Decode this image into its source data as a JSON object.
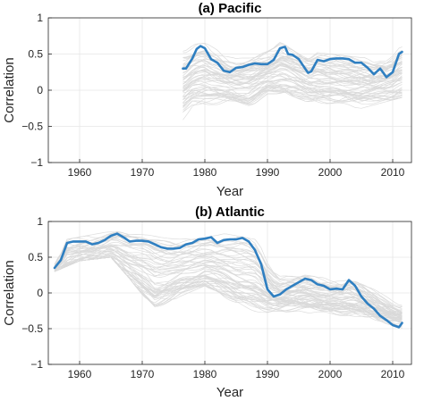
{
  "chart_data": [
    {
      "type": "line",
      "title": "(a) Pacific",
      "xlabel": "Year",
      "ylabel": "Correlation",
      "xlim": [
        1955,
        2013
      ],
      "ylim": [
        -1,
        1
      ],
      "xticks": [
        1960,
        1970,
        1980,
        1990,
        2000,
        2010
      ],
      "yticks": [
        -1,
        -0.5,
        0,
        0.5,
        1
      ],
      "grid": true,
      "legend": "none",
      "colors": {
        "ensemble": "#d9d9d9",
        "main": "#2f7fc1"
      },
      "ensemble": {
        "count": 60,
        "x_start": 1976.5,
        "x_end": 2011.5,
        "upper_envelope": [
          [
            1976.5,
            0.62
          ],
          [
            1980,
            0.65
          ],
          [
            1983,
            0.55
          ],
          [
            1985,
            0.45
          ],
          [
            1988,
            0.5
          ],
          [
            1992,
            0.66
          ],
          [
            1995,
            0.55
          ],
          [
            2000,
            0.5
          ],
          [
            2005,
            0.45
          ],
          [
            2008,
            0.45
          ],
          [
            2011.5,
            0.62
          ]
        ],
        "lower_envelope": [
          [
            1976.5,
            -0.45
          ],
          [
            1978,
            -0.25
          ],
          [
            1980,
            -0.2
          ],
          [
            1984,
            -0.2
          ],
          [
            1987,
            -0.25
          ],
          [
            1990,
            -0.05
          ],
          [
            1993,
            -0.05
          ],
          [
            1996,
            -0.15
          ],
          [
            2000,
            -0.2
          ],
          [
            2005,
            -0.25
          ],
          [
            2011.5,
            -0.1
          ]
        ]
      },
      "series": [
        {
          "x": [
            1976.5,
            1977,
            1978,
            1978.7,
            1979.3,
            1980,
            1981,
            1982,
            1983,
            1984,
            1985,
            1986,
            1987,
            1988,
            1989,
            1990,
            1991,
            1992,
            1992.8,
            1993.3,
            1994,
            1995,
            1996,
            1996.5,
            1997,
            1998,
            1999,
            2000,
            2001,
            2002,
            2003,
            2004,
            2005,
            2006,
            2007,
            2008,
            2009,
            2010,
            2011,
            2011.5
          ],
          "y": [
            0.3,
            0.3,
            0.44,
            0.57,
            0.61,
            0.58,
            0.43,
            0.38,
            0.27,
            0.25,
            0.31,
            0.32,
            0.35,
            0.37,
            0.36,
            0.36,
            0.42,
            0.58,
            0.6,
            0.5,
            0.49,
            0.43,
            0.3,
            0.24,
            0.26,
            0.42,
            0.4,
            0.43,
            0.44,
            0.44,
            0.43,
            0.38,
            0.38,
            0.31,
            0.22,
            0.3,
            0.18,
            0.25,
            0.5,
            0.53
          ]
        }
      ]
    },
    {
      "type": "line",
      "title": "(b) Atlantic",
      "xlabel": "Year",
      "ylabel": "Correlation",
      "xlim": [
        1955,
        2013
      ],
      "ylim": [
        -1,
        1
      ],
      "xticks": [
        1960,
        1970,
        1980,
        1990,
        2000,
        2010
      ],
      "yticks": [
        -1,
        -0.5,
        0,
        0.5,
        1
      ],
      "grid": true,
      "legend": "none",
      "colors": {
        "ensemble": "#d9d9d9",
        "main": "#2f7fc1"
      },
      "ensemble": {
        "count": 60,
        "x_start": 1956,
        "x_end": 2011.5,
        "upper_envelope": [
          [
            1956,
            0.4
          ],
          [
            1958,
            0.75
          ],
          [
            1966,
            0.88
          ],
          [
            1975,
            0.8
          ],
          [
            1982,
            0.85
          ],
          [
            1988,
            0.75
          ],
          [
            1992,
            0.3
          ],
          [
            2000,
            0.2
          ],
          [
            2005,
            0.15
          ],
          [
            2011.5,
            -0.1
          ]
        ],
        "lower_envelope": [
          [
            1956,
            0.3
          ],
          [
            1960,
            0.45
          ],
          [
            1965,
            0.5
          ],
          [
            1968,
            0.2
          ],
          [
            1972,
            -0.25
          ],
          [
            1976,
            -0.05
          ],
          [
            1980,
            0.1
          ],
          [
            1985,
            -0.2
          ],
          [
            1990,
            -0.3
          ],
          [
            1995,
            -0.25
          ],
          [
            2000,
            -0.35
          ],
          [
            2005,
            -0.4
          ],
          [
            2011.5,
            -0.6
          ]
        ]
      },
      "series": [
        {
          "x": [
            1956,
            1957,
            1958,
            1959,
            1960,
            1961,
            1962,
            1963,
            1964,
            1965,
            1966,
            1967,
            1968,
            1969,
            1970,
            1971,
            1972,
            1973,
            1974,
            1975,
            1976,
            1977,
            1978,
            1979,
            1980,
            1981,
            1982,
            1983,
            1984,
            1985,
            1986,
            1987,
            1988,
            1989,
            1990,
            1991,
            1992,
            1993,
            1994,
            1995,
            1996,
            1997,
            1998,
            1999,
            2000,
            2001,
            2002,
            2003,
            2004,
            2005,
            2006,
            2007,
            2008,
            2009,
            2010,
            2011,
            2011.5
          ],
          "y": [
            0.35,
            0.46,
            0.7,
            0.72,
            0.72,
            0.72,
            0.68,
            0.7,
            0.74,
            0.8,
            0.83,
            0.78,
            0.72,
            0.73,
            0.73,
            0.72,
            0.68,
            0.64,
            0.62,
            0.62,
            0.63,
            0.68,
            0.7,
            0.75,
            0.76,
            0.78,
            0.7,
            0.74,
            0.75,
            0.75,
            0.77,
            0.72,
            0.6,
            0.4,
            0.05,
            -0.05,
            -0.02,
            0.05,
            0.1,
            0.15,
            0.2,
            0.18,
            0.12,
            0.1,
            0.05,
            0.06,
            0.05,
            0.18,
            0.1,
            -0.05,
            -0.15,
            -0.22,
            -0.32,
            -0.38,
            -0.45,
            -0.48,
            -0.42
          ]
        }
      ]
    }
  ]
}
